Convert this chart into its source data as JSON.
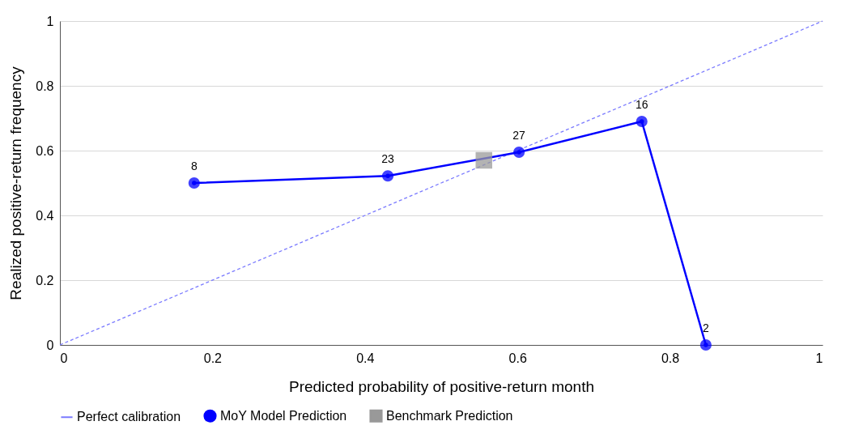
{
  "chart_data": {
    "type": "line",
    "xlabel": "Predicted probability of positive-return month",
    "ylabel": "Realized positive-return frequency",
    "xlim": [
      0,
      1
    ],
    "ylim": [
      0,
      1
    ],
    "xticks": [
      0,
      0.2,
      0.4,
      0.6,
      0.8,
      1
    ],
    "yticks": [
      0,
      0.2,
      0.4,
      0.6,
      0.8,
      1
    ],
    "grid": "y",
    "legend": "bottom",
    "series": [
      {
        "name": "Perfect calibration",
        "type": "line",
        "x": [
          0,
          1
        ],
        "values": [
          0,
          1
        ],
        "color": "#7b7bff",
        "line_style": "dashed",
        "marker": "none"
      },
      {
        "name": "MoY Model Prediction",
        "x": [
          0.176,
          0.43,
          0.602,
          0.763,
          0.847
        ],
        "values": [
          0.5,
          0.522,
          0.595,
          0.69,
          0
        ],
        "color": "#0000ff",
        "line_style": "solid",
        "marker": "circle"
      },
      {
        "name": "Benchmark Prediction",
        "type": "scatter",
        "x": [
          0.556
        ],
        "values": [
          0.57
        ],
        "color": "#999999",
        "marker": "square"
      }
    ],
    "annotations": [
      {
        "text": "8",
        "x": 0.176,
        "y": 0.5
      },
      {
        "text": "23",
        "x": 0.43,
        "y": 0.522
      },
      {
        "text": "27",
        "x": 0.602,
        "y": 0.595
      },
      {
        "text": "16",
        "x": 0.763,
        "y": 0.69
      },
      {
        "text": "2",
        "x": 0.847,
        "y": 0
      }
    ]
  }
}
